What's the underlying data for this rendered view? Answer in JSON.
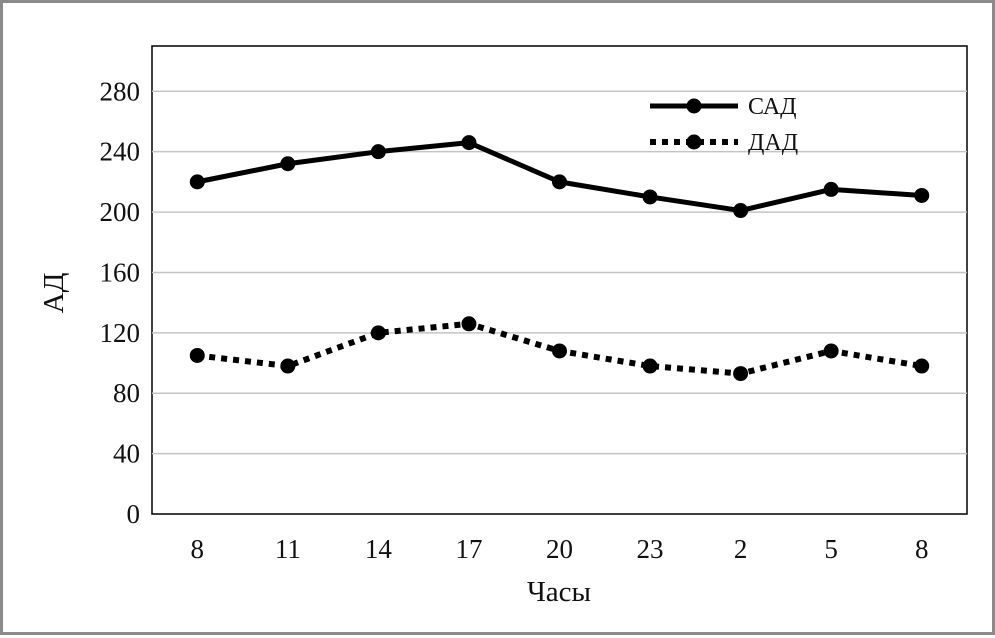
{
  "chart_data": {
    "type": "line",
    "title": "",
    "xlabel": "Часы",
    "ylabel": "АД",
    "categories": [
      "8",
      "11",
      "14",
      "17",
      "20",
      "23",
      "2",
      "5",
      "8"
    ],
    "ylim": [
      0,
      310
    ],
    "yticks": [
      0,
      40,
      80,
      120,
      160,
      200,
      240,
      280
    ],
    "grid": true,
    "legend_position": "top-right",
    "series": [
      {
        "name": "САД",
        "style": "solid",
        "color": "#000000",
        "values": [
          220,
          232,
          240,
          246,
          220,
          210,
          201,
          215,
          211
        ]
      },
      {
        "name": "ДАД",
        "style": "dotted",
        "color": "#000000",
        "values": [
          105,
          98,
          120,
          126,
          108,
          98,
          93,
          108,
          98
        ]
      }
    ]
  }
}
